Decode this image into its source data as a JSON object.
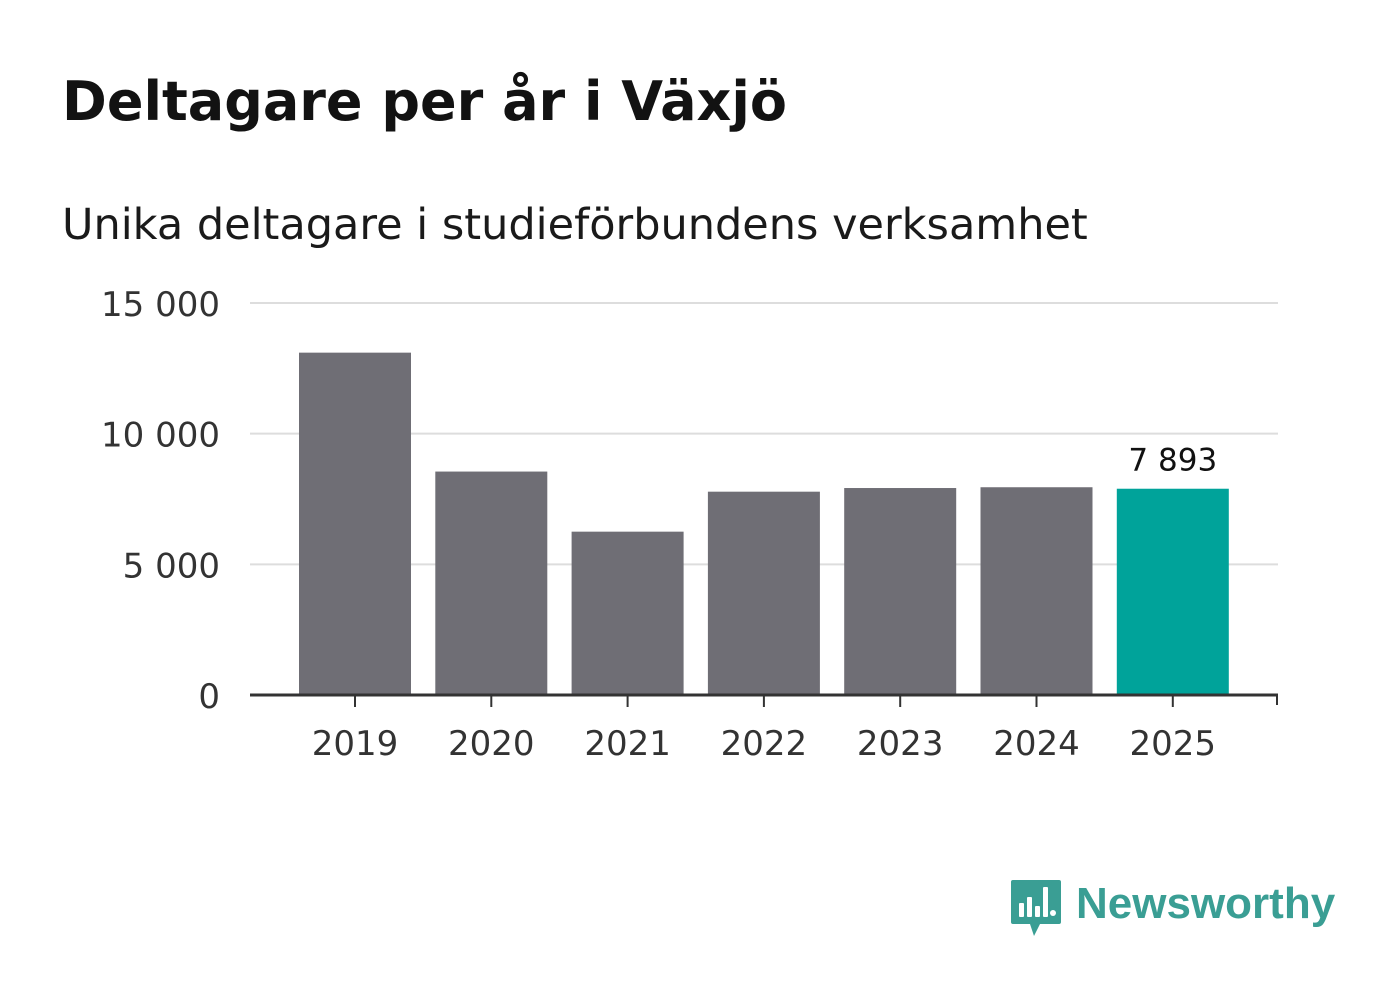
{
  "header": {
    "title": "Deltagare per år i Växjö",
    "subtitle": "Unika deltagare i studieförbundens verksamhet"
  },
  "brand": {
    "name": "Newsworthy",
    "color": "#3a9e94",
    "icon": "bar-chart-speech-bubble-icon"
  },
  "chart_data": {
    "type": "bar",
    "title": "Deltagare per år i Växjö",
    "subtitle": "Unika deltagare i studieförbundens verksamhet",
    "xlabel": "",
    "ylabel": "",
    "categories": [
      "2019",
      "2020",
      "2021",
      "2022",
      "2023",
      "2024",
      "2025"
    ],
    "values": [
      13100,
      8550,
      6250,
      7780,
      7920,
      7950,
      7893
    ],
    "ylim": [
      0,
      15000
    ],
    "yticks": [
      0,
      5000,
      10000,
      15000
    ],
    "ytick_labels": [
      "0",
      "5 000",
      "10 000",
      "15 000"
    ],
    "grid": true,
    "highlight_index": 6,
    "highlight_label": "7 893",
    "colors": {
      "bar": "#6f6e75",
      "highlight": "#00a39a",
      "grid": "#dddddd",
      "axis": "#333333",
      "tick_text": "#333333"
    }
  }
}
